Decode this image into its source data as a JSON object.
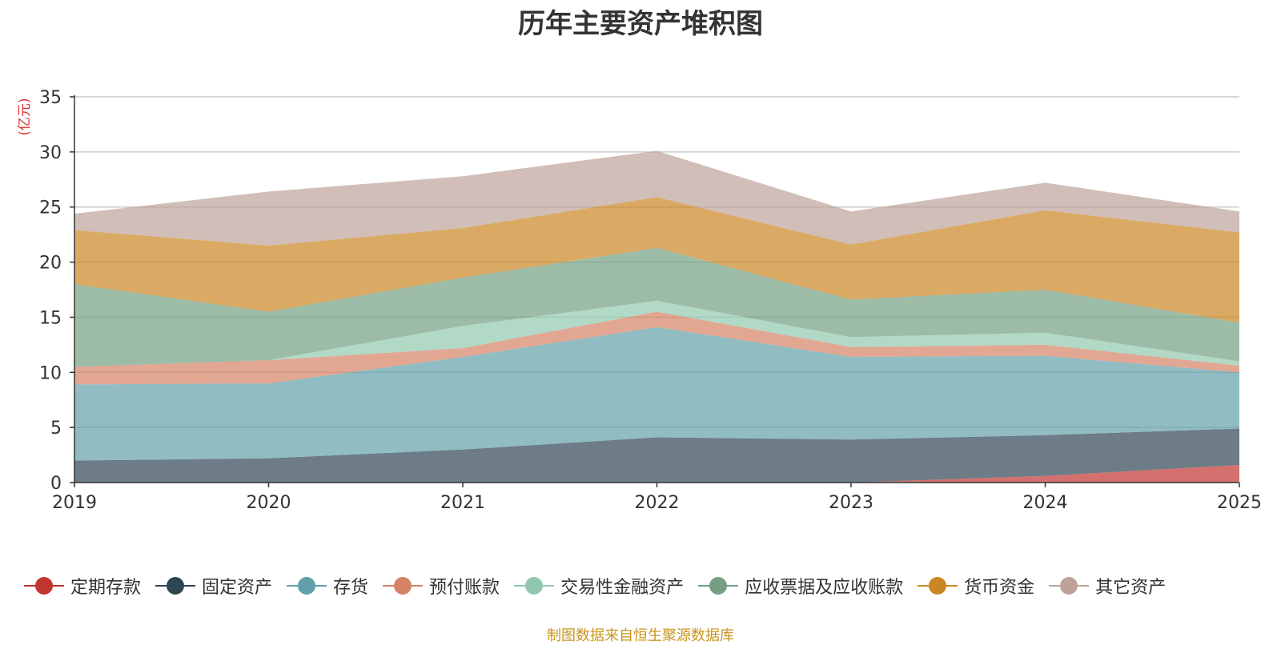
{
  "source_note": "制图数据来自恒生聚源数据库",
  "chart_data": {
    "type": "area",
    "stacked": true,
    "title": "历年主要资产堆积图",
    "ylabel": "(亿元)",
    "xlabel": "",
    "x": [
      "2019",
      "2020",
      "2021",
      "2022",
      "2023",
      "2024",
      "2025"
    ],
    "ylim": [
      0,
      35
    ],
    "yticks": [
      "0",
      "5",
      "10",
      "15",
      "20",
      "25",
      "30",
      "35"
    ],
    "grid": true,
    "legend_position": "bottom",
    "series": [
      {
        "name": "定期存款",
        "color": "#c23531",
        "values": [
          0,
          0,
          0,
          0,
          0,
          0.6,
          1.6
        ]
      },
      {
        "name": "固定资产",
        "color": "#2f4554",
        "values": [
          2.0,
          2.2,
          3.0,
          4.1,
          3.9,
          3.7,
          3.3
        ]
      },
      {
        "name": "存货",
        "color": "#61a0a8",
        "values": [
          6.9,
          6.8,
          8.4,
          10.0,
          7.5,
          7.2,
          5.1
        ]
      },
      {
        "name": "预付账款",
        "color": "#d48265",
        "values": [
          1.6,
          2.1,
          0.8,
          1.4,
          0.9,
          1.0,
          0.6
        ]
      },
      {
        "name": "交易性金融资产",
        "color": "#91c7ae",
        "values": [
          0,
          0,
          2.0,
          1.0,
          0.9,
          1.1,
          0.4
        ]
      },
      {
        "name": "应收票据及应收账款",
        "color": "#749f83",
        "values": [
          7.5,
          4.4,
          4.4,
          4.8,
          3.4,
          3.9,
          3.5
        ]
      },
      {
        "name": "货币资金",
        "color": "#ca8622",
        "values": [
          4.9,
          6.0,
          4.5,
          4.6,
          5.0,
          7.2,
          8.2
        ]
      },
      {
        "name": "其它资产",
        "color": "#bda29a",
        "values": [
          1.5,
          4.9,
          4.7,
          4.2,
          3.0,
          2.5,
          1.9
        ]
      }
    ]
  }
}
